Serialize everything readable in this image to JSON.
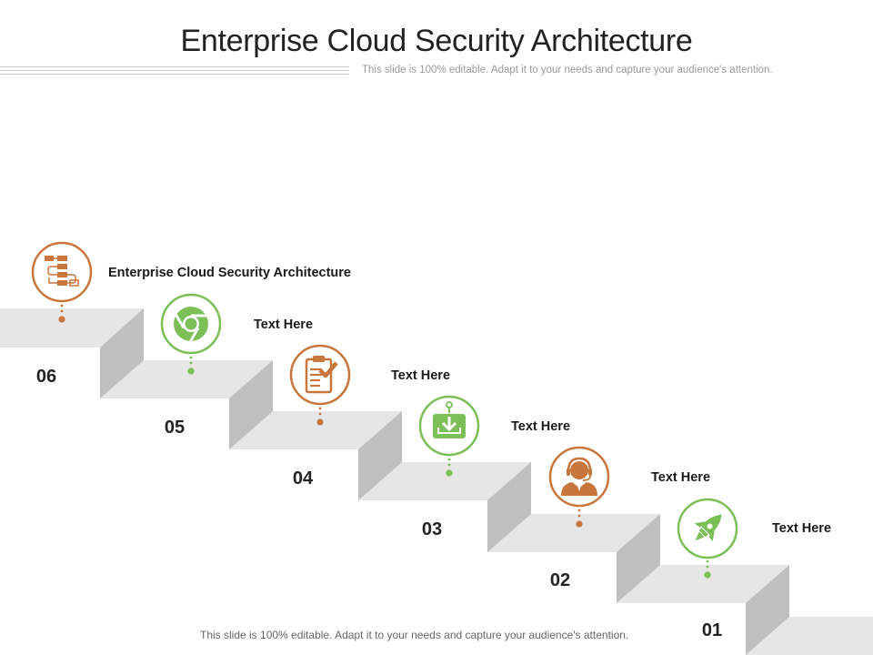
{
  "header": {
    "title": "Enterprise Cloud Security Architecture",
    "subtitle": "This slide is 100% editable. Adapt it to your needs and capture your audience's attention."
  },
  "footer": {
    "note": "This slide is 100% editable. Adapt it to your needs and capture your audience's attention."
  },
  "colors": {
    "orange": "#c8763c",
    "green": "#7cbf57",
    "step_top": "#e6e6e6",
    "step_face": "#d4d4d4",
    "step_side": "#bfbfbf"
  },
  "steps": [
    {
      "number": "01",
      "label": "Text Here",
      "icon": "rocket-icon",
      "color": "green"
    },
    {
      "number": "02",
      "label": "Text Here",
      "icon": "headset-agent-icon",
      "color": "orange"
    },
    {
      "number": "03",
      "label": "Text Here",
      "icon": "download-inbox-icon",
      "color": "green"
    },
    {
      "number": "04",
      "label": "Text Here",
      "icon": "clipboard-check-icon",
      "color": "orange"
    },
    {
      "number": "05",
      "label": "Text Here",
      "icon": "chrome-browser-icon",
      "color": "green"
    },
    {
      "number": "06",
      "label": "Enterprise Cloud Security Architecture",
      "icon": "flowchart-icon",
      "color": "orange"
    }
  ]
}
